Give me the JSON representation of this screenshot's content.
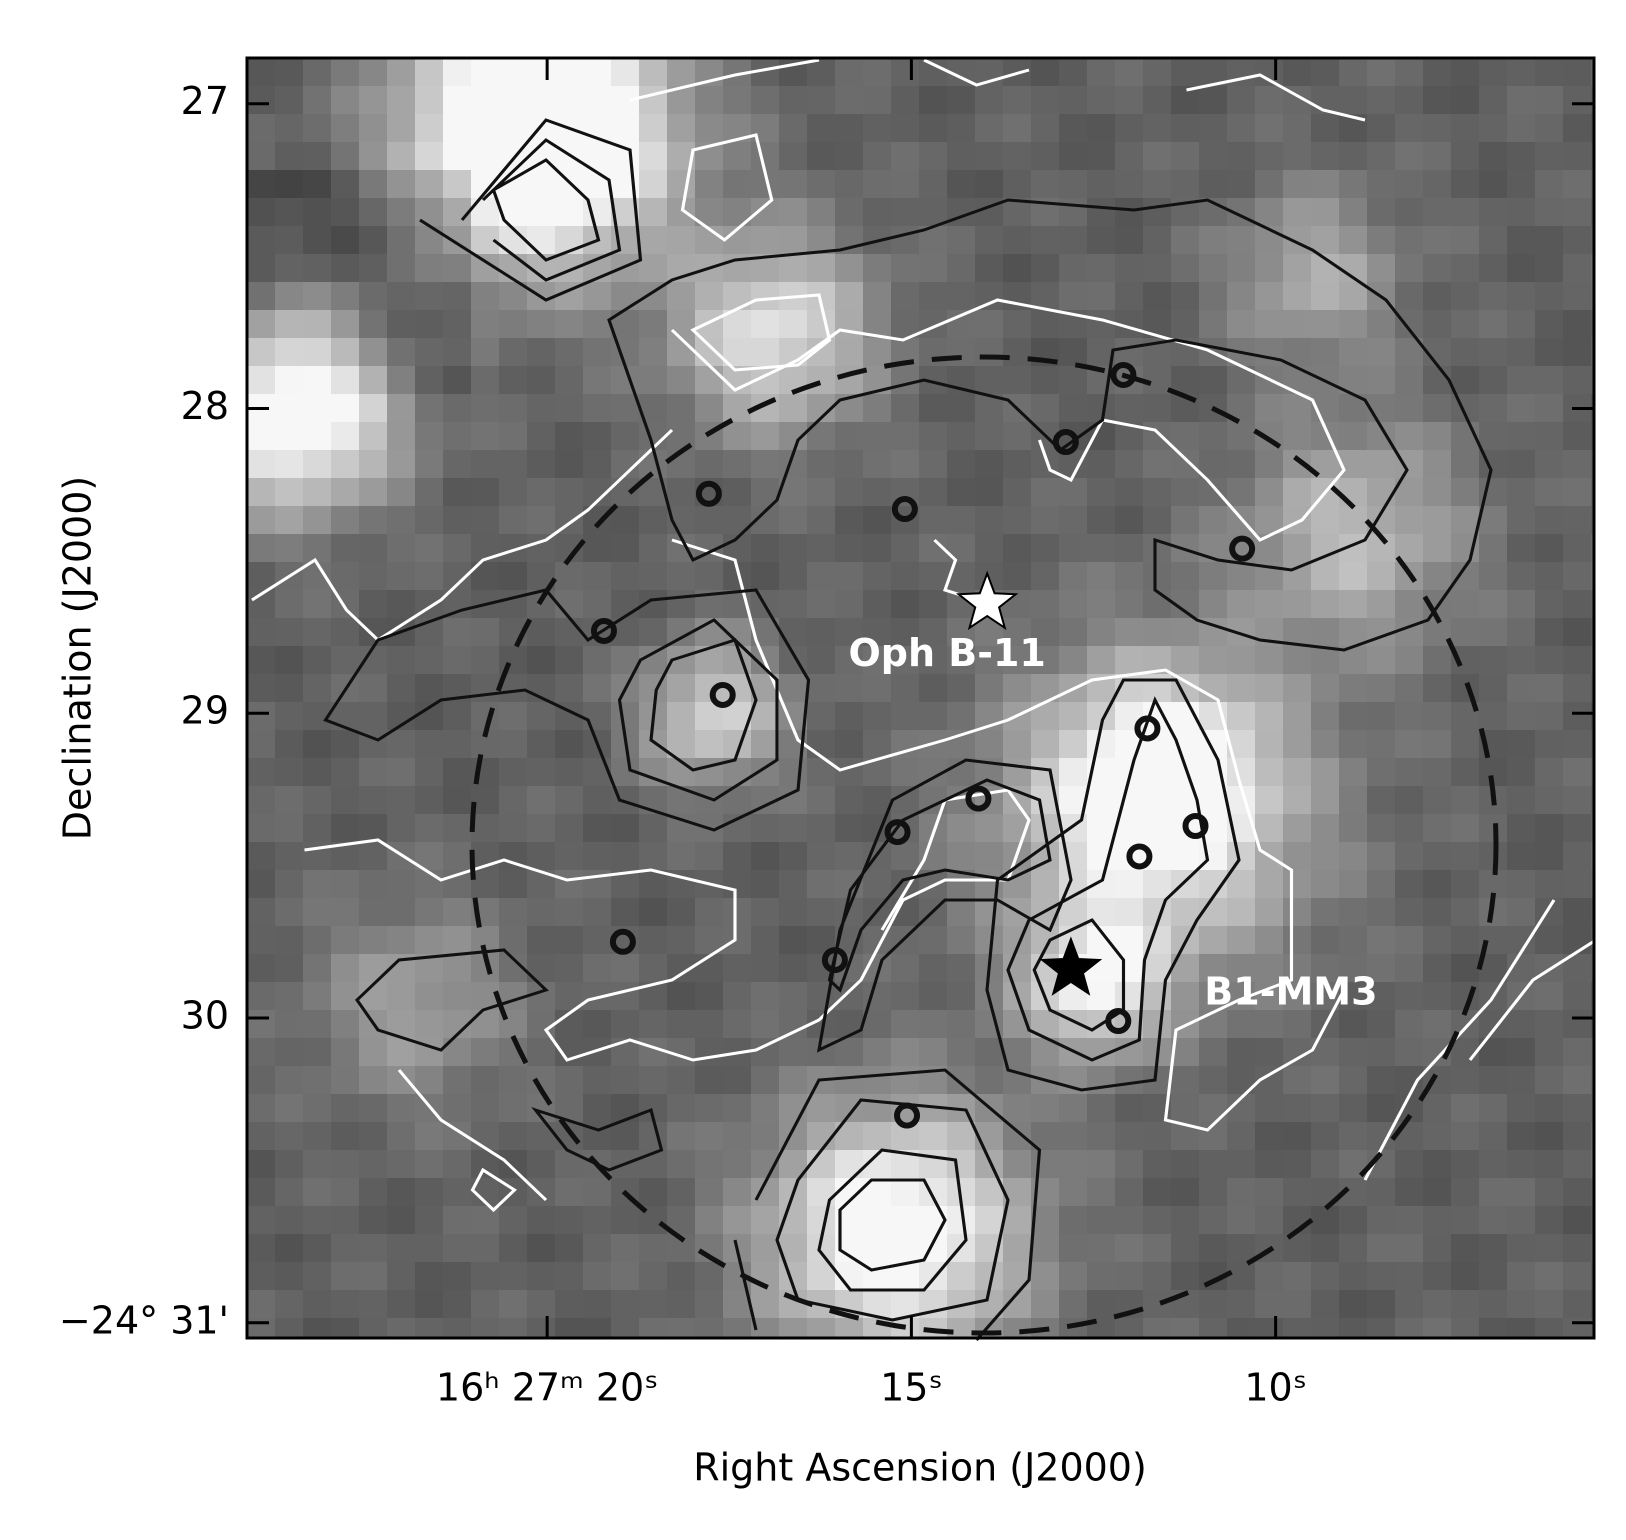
{
  "chart_data": {
    "type": "scatter",
    "xlabel": "Right Ascension (J2000)",
    "ylabel": "Declination (J2000)",
    "xlim": [
      24.12,
      5.63
    ],
    "ylim": [
      31.05,
      26.85
    ],
    "xticks": [
      {
        "value": 20,
        "label": "16ʰ 27ᵐ 20ˢ"
      },
      {
        "value": 15,
        "label": "15ˢ"
      },
      {
        "value": 10,
        "label": "10ˢ"
      }
    ],
    "yticks": [
      27,
      28,
      29,
      30,
      {
        "value": 31,
        "label": "−24° 31'"
      }
    ],
    "x": [
      12.09,
      12.88,
      17.78,
      15.09,
      10.46,
      19.22,
      17.59,
      11.76,
      14.08,
      15.19,
      11.1,
      11.87,
      18.96,
      16.05,
      12.16,
      15.06
    ],
    "values": [
      27.89,
      28.11,
      28.28,
      28.33,
      28.46,
      28.73,
      28.94,
      29.05,
      29.28,
      29.39,
      29.37,
      29.47,
      29.75,
      29.81,
      30.01,
      30.32
    ],
    "annotations": [
      {
        "text": "Oph B-11",
        "x": 13.96,
        "y": 28.64,
        "color": "#ffffff"
      },
      {
        "text": "B1-MM3",
        "x": 12.81,
        "y": 29.84,
        "color": "#000000"
      }
    ]
  }
}
